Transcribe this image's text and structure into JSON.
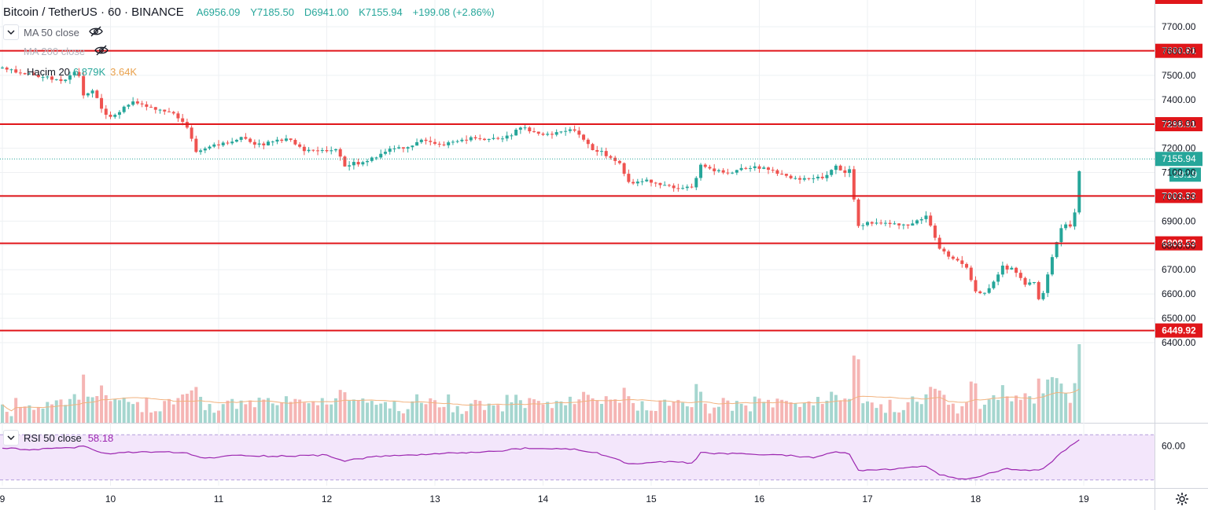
{
  "header": {
    "symbol": "Bitcoin / TetherUS · 60 · BINANCE",
    "open": "A6956.09",
    "high": "Y7185.50",
    "low": "D6941.00",
    "close": "K7155.94",
    "change": "+199.08 (+2.86%)"
  },
  "indicators": {
    "ma50": "MA 50 close",
    "ma200": "MA 200 close",
    "volume_label": "Hacim 20",
    "volume_value": "6.879K",
    "volume_ma": "3.64K",
    "rsi_label": "RSI 50 close",
    "rsi_value": "58.18"
  },
  "icons": {
    "collapse": "chevron-down-icon",
    "eye": "eye-off-icon",
    "settings": "gear-icon"
  },
  "colors": {
    "up": "#26a69a",
    "down": "#ef5350",
    "level_line": "#e0161a",
    "rsi_line": "#9c27b0",
    "rsi_band": "#f3e6fb",
    "volume_ma": "#f2b27e",
    "last_price": "#26a69a"
  },
  "chart_data": {
    "type": "candlestick",
    "title": "Bitcoin / TetherUS · 60 · BINANCE",
    "interval": "60",
    "ylim": [
      6350,
      7800
    ],
    "y_ticks": [
      6400,
      6500,
      6600,
      6700,
      6800,
      6900,
      7000,
      7100,
      7200,
      7300,
      7400,
      7500,
      7600,
      7700
    ],
    "y_tick_labels": [
      "6400.00",
      "6500.00",
      "6600.00",
      "6700.00",
      "6800.00",
      "6900.00",
      "7000.00",
      "7100.00",
      "7200.00",
      "7300.00",
      "7400.00",
      "7500.00",
      "7600.00",
      "7700.00"
    ],
    "x_tick_labels": [
      "9",
      "10",
      "11",
      "12",
      "13",
      "14",
      "15",
      "16",
      "17",
      "18",
      "19"
    ],
    "x_range": [
      9,
      19.6
    ],
    "grid": true,
    "horizontal_levels": [
      7600.81,
      7298.91,
      7003.53,
      6808.53,
      6449.92
    ],
    "horizontal_level_labels": [
      "7600.81",
      "7298.91",
      "7003.53",
      "6808.53",
      "6449.92"
    ],
    "last_price": 7155.94,
    "last_price_label": "7155.94",
    "countdown": "29:19",
    "price_path": [
      [
        9.0,
        7530
      ],
      [
        9.2,
        7505
      ],
      [
        9.4,
        7490
      ],
      [
        9.55,
        7480
      ],
      [
        9.7,
        7515
      ],
      [
        9.75,
        7420
      ],
      [
        9.85,
        7440
      ],
      [
        9.95,
        7330
      ],
      [
        10.05,
        7340
      ],
      [
        10.2,
        7390
      ],
      [
        10.35,
        7370
      ],
      [
        10.5,
        7355
      ],
      [
        10.6,
        7340
      ],
      [
        10.7,
        7300
      ],
      [
        10.8,
        7180
      ],
      [
        10.95,
        7210
      ],
      [
        11.1,
        7220
      ],
      [
        11.2,
        7245
      ],
      [
        11.35,
        7210
      ],
      [
        11.5,
        7225
      ],
      [
        11.65,
        7240
      ],
      [
        11.8,
        7190
      ],
      [
        11.95,
        7185
      ],
      [
        12.1,
        7200
      ],
      [
        12.15,
        7130
      ],
      [
        12.3,
        7140
      ],
      [
        12.45,
        7160
      ],
      [
        12.6,
        7200
      ],
      [
        12.75,
        7205
      ],
      [
        12.9,
        7240
      ],
      [
        13.05,
        7215
      ],
      [
        13.2,
        7225
      ],
      [
        13.35,
        7240
      ],
      [
        13.5,
        7235
      ],
      [
        13.65,
        7240
      ],
      [
        13.8,
        7285
      ],
      [
        13.95,
        7260
      ],
      [
        14.1,
        7260
      ],
      [
        14.3,
        7275
      ],
      [
        14.45,
        7200
      ],
      [
        14.6,
        7170
      ],
      [
        14.7,
        7140
      ],
      [
        14.8,
        7050
      ],
      [
        14.95,
        7070
      ],
      [
        15.1,
        7050
      ],
      [
        15.25,
        7040
      ],
      [
        15.4,
        7045
      ],
      [
        15.45,
        7130
      ],
      [
        15.55,
        7110
      ],
      [
        15.7,
        7095
      ],
      [
        15.85,
        7115
      ],
      [
        16.0,
        7120
      ],
      [
        16.15,
        7100
      ],
      [
        16.3,
        7080
      ],
      [
        16.45,
        7070
      ],
      [
        16.6,
        7080
      ],
      [
        16.7,
        7130
      ],
      [
        16.8,
        7100
      ],
      [
        16.85,
        7110
      ],
      [
        16.9,
        6880
      ],
      [
        17.0,
        6890
      ],
      [
        17.2,
        6890
      ],
      [
        17.4,
        6885
      ],
      [
        17.55,
        6930
      ],
      [
        17.65,
        6800
      ],
      [
        17.75,
        6750
      ],
      [
        17.9,
        6720
      ],
      [
        18.0,
        6610
      ],
      [
        18.1,
        6600
      ],
      [
        18.25,
        6710
      ],
      [
        18.35,
        6700
      ],
      [
        18.45,
        6640
      ],
      [
        18.55,
        6650
      ],
      [
        18.6,
        6550
      ],
      [
        18.65,
        6660
      ],
      [
        18.75,
        6810
      ],
      [
        18.8,
        6880
      ],
      [
        18.9,
        6880
      ],
      [
        18.92,
        6950
      ],
      [
        18.97,
        7156
      ]
    ],
    "volume_ma_label": "3.64K",
    "rsi": {
      "label": "RSI 50 close",
      "value": 58.18,
      "tick_label": "60.00",
      "band": [
        30,
        70
      ],
      "range": [
        25,
        75
      ],
      "path": [
        [
          9.0,
          58
        ],
        [
          9.3,
          57
        ],
        [
          9.6,
          58
        ],
        [
          9.75,
          60
        ],
        [
          9.95,
          53
        ],
        [
          10.3,
          55
        ],
        [
          10.7,
          54
        ],
        [
          10.85,
          49
        ],
        [
          11.2,
          52
        ],
        [
          11.5,
          51
        ],
        [
          12.0,
          52
        ],
        [
          12.15,
          47
        ],
        [
          12.5,
          51
        ],
        [
          13.0,
          53
        ],
        [
          13.5,
          55
        ],
        [
          13.85,
          58
        ],
        [
          14.3,
          57
        ],
        [
          14.5,
          54
        ],
        [
          14.8,
          44
        ],
        [
          15.1,
          46
        ],
        [
          15.4,
          45
        ],
        [
          15.45,
          54
        ],
        [
          15.8,
          53
        ],
        [
          16.2,
          52
        ],
        [
          16.5,
          50
        ],
        [
          16.7,
          55
        ],
        [
          16.85,
          53
        ],
        [
          16.9,
          38
        ],
        [
          17.3,
          40
        ],
        [
          17.55,
          42
        ],
        [
          17.65,
          35
        ],
        [
          17.9,
          30
        ],
        [
          18.1,
          35
        ],
        [
          18.3,
          40
        ],
        [
          18.6,
          38
        ],
        [
          18.7,
          45
        ],
        [
          18.8,
          55
        ],
        [
          18.97,
          66
        ]
      ]
    }
  }
}
